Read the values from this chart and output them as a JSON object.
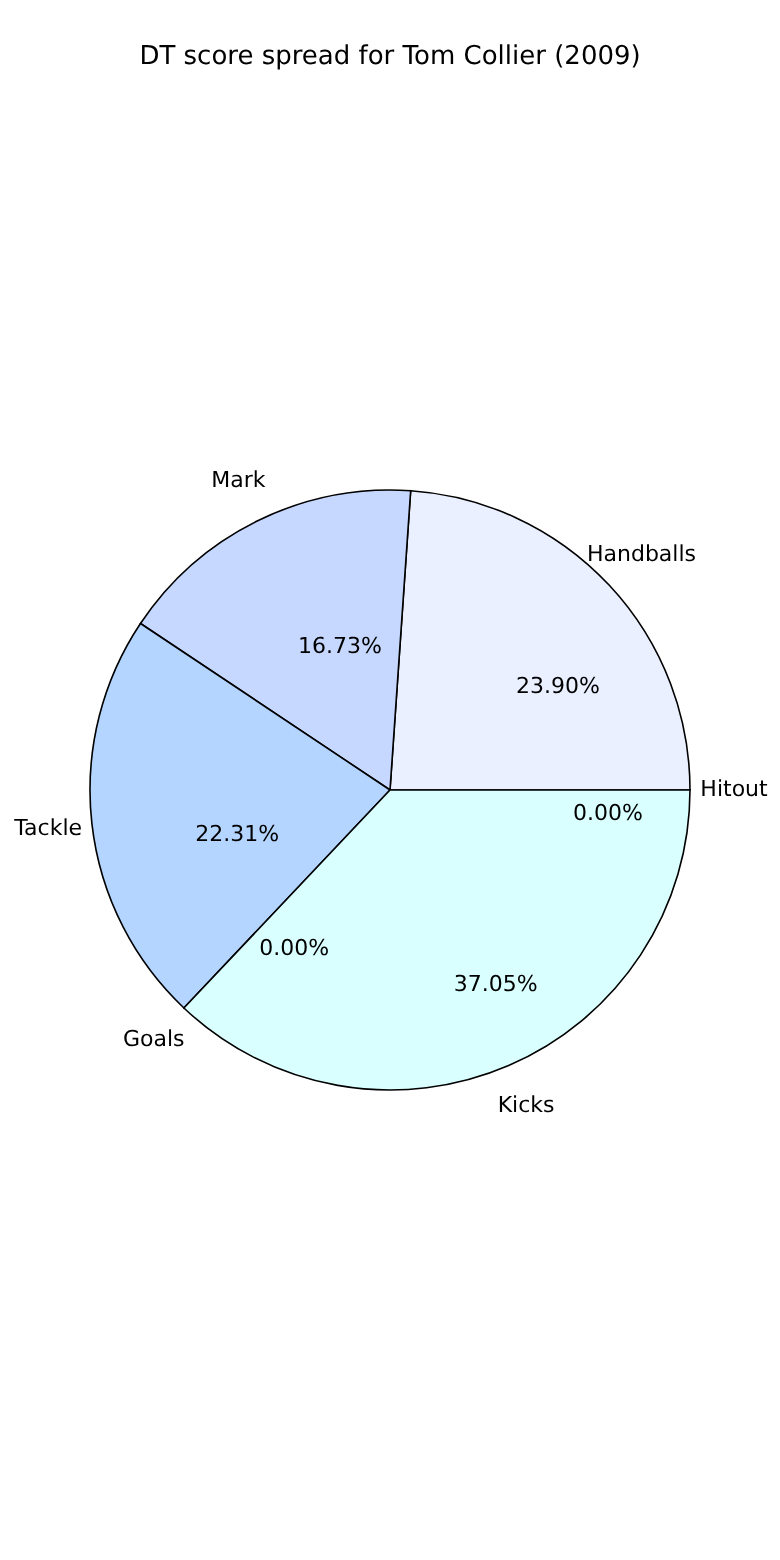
{
  "chart_data": {
    "type": "pie",
    "title": "DT score spread for Tom Collier (2009)",
    "categories": [
      "Handballs",
      "Mark",
      "Tackle",
      "Goals",
      "Kicks",
      "Hitout"
    ],
    "values": [
      23.9,
      16.73,
      22.31,
      0,
      37.05,
      0
    ],
    "colors": [
      "#eaf0ff",
      "#c6d8ff",
      "#b3d5ff",
      "#ffffff",
      "#d9ffff",
      "#ffffff"
    ],
    "value_labels": [
      "23.90%",
      "16.73%",
      "22.31%",
      "0.00%",
      "37.05%",
      "0.00%"
    ]
  }
}
